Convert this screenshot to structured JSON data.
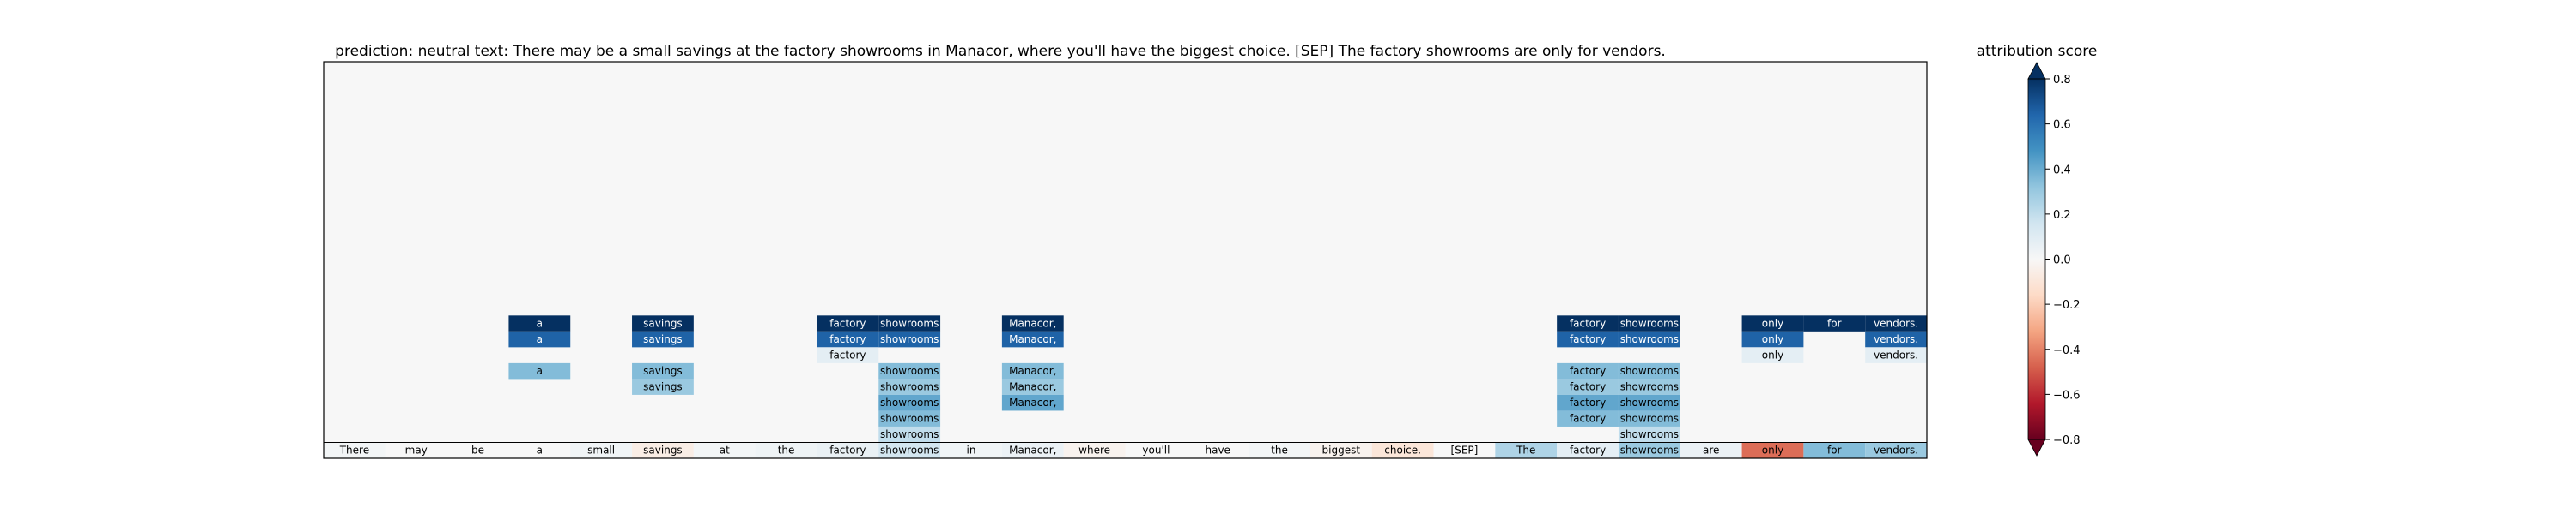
{
  "chart_data": {
    "type": "heatmap",
    "title_prefix": "prediction:",
    "prediction": "neutral",
    "text_prefix": "text:",
    "text": "There may be a small savings at the factory showrooms in Manacor, where you'll have the biggest choice. [SEP] The factory showrooms are only for vendors.",
    "colorbar": {
      "title": "attribution score",
      "vmin": -0.8,
      "vmax": 0.8,
      "ticks": [
        0.8,
        0.6,
        0.4,
        0.2,
        0.0,
        -0.2,
        -0.4,
        -0.6,
        -0.8
      ],
      "tick_labels": [
        "0.8",
        "0.6",
        "0.4",
        "0.2",
        "0.0",
        "−0.2",
        "−0.4",
        "−0.6",
        "−0.8"
      ],
      "extend": "both",
      "colormap": "RdBu"
    },
    "num_rows": 25,
    "tokens": [
      "There",
      "may",
      "be",
      "a",
      "small",
      "savings",
      "at",
      "the",
      "factory",
      "showrooms",
      "in",
      "Manacor,",
      "where",
      "you'll",
      "have",
      "the",
      "biggest",
      "choice.",
      "[SEP]",
      "The",
      "factory",
      "showrooms",
      "are",
      "only",
      "for",
      "vendors."
    ],
    "bottom_row_scores": [
      0.02,
      0.0,
      0.0,
      0.0,
      0.03,
      -0.06,
      0.02,
      0.04,
      0.06,
      0.15,
      0.03,
      0.05,
      -0.03,
      0.0,
      0.0,
      0.02,
      -0.03,
      -0.1,
      0.0,
      0.25,
      0.08,
      0.3,
      0.05,
      -0.45,
      0.35,
      0.3
    ],
    "cells": [
      {
        "row": 16,
        "col": 3,
        "value": 0.8
      },
      {
        "row": 17,
        "col": 3,
        "value": 0.65
      },
      {
        "row": 19,
        "col": 3,
        "value": 0.35
      },
      {
        "row": 16,
        "col": 5,
        "value": 0.8
      },
      {
        "row": 17,
        "col": 5,
        "value": 0.65
      },
      {
        "row": 19,
        "col": 5,
        "value": 0.35
      },
      {
        "row": 20,
        "col": 5,
        "value": 0.3
      },
      {
        "row": 16,
        "col": 8,
        "value": 0.8
      },
      {
        "row": 17,
        "col": 8,
        "value": 0.65
      },
      {
        "row": 18,
        "col": 8,
        "value": 0.08
      },
      {
        "row": 16,
        "col": 9,
        "value": 0.8
      },
      {
        "row": 17,
        "col": 9,
        "value": 0.65
      },
      {
        "row": 19,
        "col": 9,
        "value": 0.35
      },
      {
        "row": 20,
        "col": 9,
        "value": 0.3
      },
      {
        "row": 21,
        "col": 9,
        "value": 0.42
      },
      {
        "row": 22,
        "col": 9,
        "value": 0.35
      },
      {
        "row": 23,
        "col": 9,
        "value": 0.2
      },
      {
        "row": 16,
        "col": 11,
        "value": 0.8
      },
      {
        "row": 17,
        "col": 11,
        "value": 0.65
      },
      {
        "row": 19,
        "col": 11,
        "value": 0.35
      },
      {
        "row": 20,
        "col": 11,
        "value": 0.3
      },
      {
        "row": 21,
        "col": 11,
        "value": 0.42
      },
      {
        "row": 16,
        "col": 20,
        "value": 0.8
      },
      {
        "row": 17,
        "col": 20,
        "value": 0.65
      },
      {
        "row": 19,
        "col": 20,
        "value": 0.35
      },
      {
        "row": 20,
        "col": 20,
        "value": 0.3
      },
      {
        "row": 21,
        "col": 20,
        "value": 0.42
      },
      {
        "row": 22,
        "col": 20,
        "value": 0.35
      },
      {
        "row": 16,
        "col": 21,
        "value": 0.8
      },
      {
        "row": 17,
        "col": 21,
        "value": 0.65
      },
      {
        "row": 19,
        "col": 21,
        "value": 0.35
      },
      {
        "row": 20,
        "col": 21,
        "value": 0.3
      },
      {
        "row": 21,
        "col": 21,
        "value": 0.42
      },
      {
        "row": 22,
        "col": 21,
        "value": 0.35
      },
      {
        "row": 23,
        "col": 21,
        "value": 0.2
      },
      {
        "row": 16,
        "col": 23,
        "value": 0.8
      },
      {
        "row": 17,
        "col": 23,
        "value": 0.65
      },
      {
        "row": 18,
        "col": 23,
        "value": 0.08
      },
      {
        "row": 24,
        "col": 23,
        "value": 0.0
      },
      {
        "row": 16,
        "col": 24,
        "value": 0.8
      },
      {
        "row": 16,
        "col": 25,
        "value": 0.8
      },
      {
        "row": 17,
        "col": 25,
        "value": 0.65
      },
      {
        "row": 18,
        "col": 25,
        "value": 0.08
      },
      {
        "row": 24,
        "col": 25,
        "value": 0.0
      }
    ]
  }
}
